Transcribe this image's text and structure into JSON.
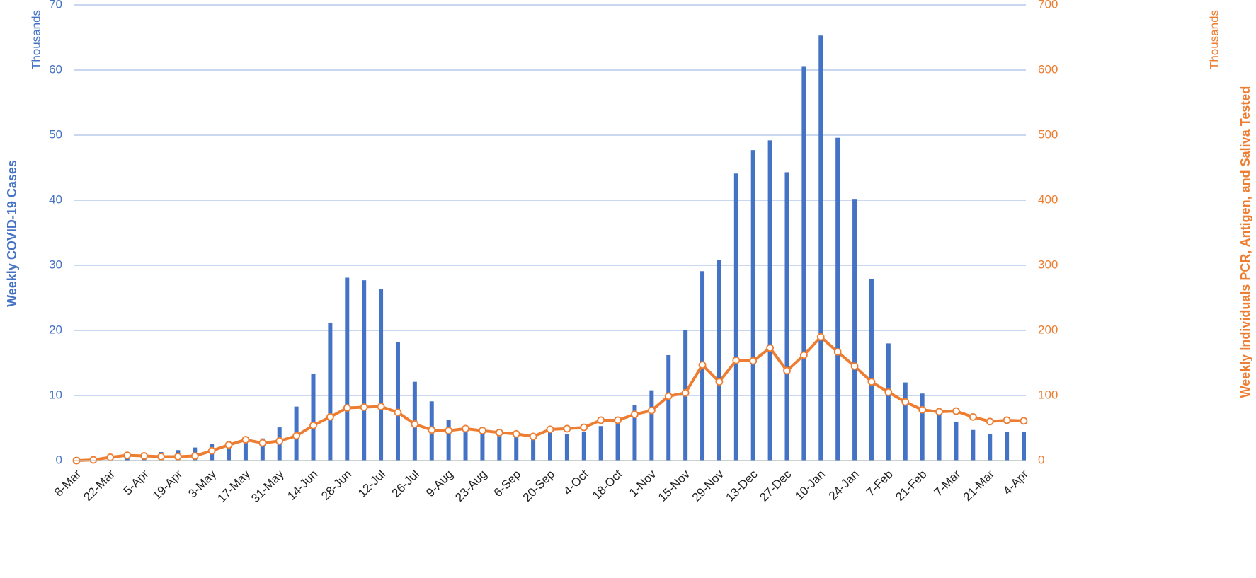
{
  "chart_data": {
    "type": "combo",
    "ylabel": "Weekly COVID-19 Cases",
    "ylabel_unit": "Thousands",
    "y2label": "Weekly Individuals PCR, Antigen, and Saliva Tested",
    "y2label_unit": "Thousands",
    "categories": [
      "8-Mar",
      null,
      "22-Mar",
      null,
      "5-Apr",
      null,
      "19-Apr",
      null,
      "3-May",
      null,
      "17-May",
      null,
      "31-May",
      null,
      "14-Jun",
      null,
      "28-Jun",
      null,
      "12-Jul",
      null,
      "26-Jul",
      null,
      "9-Aug",
      null,
      "23-Aug",
      null,
      "6-Sep",
      null,
      "20-Sep",
      null,
      "4-Oct",
      null,
      "18-Oct",
      null,
      "1-Nov",
      null,
      "15-Nov",
      null,
      "29-Nov",
      null,
      "13-Dec",
      null,
      "27-Dec",
      null,
      "10-Jan",
      null,
      "24-Jan",
      null,
      "7-Feb",
      null,
      "21-Feb",
      null,
      "7-Mar",
      null,
      "21-Mar",
      null,
      "4-Apr"
    ],
    "series": [
      {
        "type": "bar",
        "axis": "y",
        "color": "#4472c4",
        "values": [
          0,
          0.1,
          0.3,
          0.5,
          0.8,
          1.3,
          1.6,
          2.0,
          2.6,
          3.0,
          3.2,
          3.4,
          5.1,
          8.3,
          13.3,
          21.2,
          28.1,
          27.7,
          26.3,
          18.2,
          12.1,
          9.1,
          6.3,
          5.0,
          4.7,
          4.4,
          4.0,
          3.8,
          4.6,
          4.1,
          4.4,
          5.3,
          6.2,
          8.5,
          10.8,
          16.2,
          20.0,
          29.1,
          30.8,
          44.1,
          47.7,
          49.2,
          44.3,
          60.6,
          65.3,
          49.6,
          40.2,
          27.9,
          18.0,
          12.0,
          10.3,
          7.8,
          5.9,
          4.7,
          4.1,
          4.4,
          4.4
        ]
      },
      {
        "type": "line",
        "axis": "y2",
        "color": "#ed7d31",
        "values": [
          0,
          1,
          5,
          8,
          7,
          6,
          6,
          7,
          15,
          24,
          32,
          27,
          30,
          38,
          54,
          67,
          81,
          82,
          83,
          74,
          56,
          47,
          46,
          49,
          46,
          43,
          41,
          37,
          48,
          49,
          51,
          62,
          62,
          71,
          77,
          99,
          104,
          147,
          121,
          154,
          153,
          173,
          138,
          162,
          190,
          167,
          145,
          121,
          105,
          90,
          78,
          75,
          76,
          67,
          60,
          62,
          61
        ]
      }
    ],
    "ylim": [
      0,
      70
    ],
    "yticks": [
      0,
      10,
      20,
      30,
      40,
      50,
      60,
      70
    ],
    "y2lim": [
      0,
      700
    ],
    "y2ticks": [
      0,
      100,
      200,
      300,
      400,
      500,
      600,
      700
    ],
    "grid": true
  }
}
